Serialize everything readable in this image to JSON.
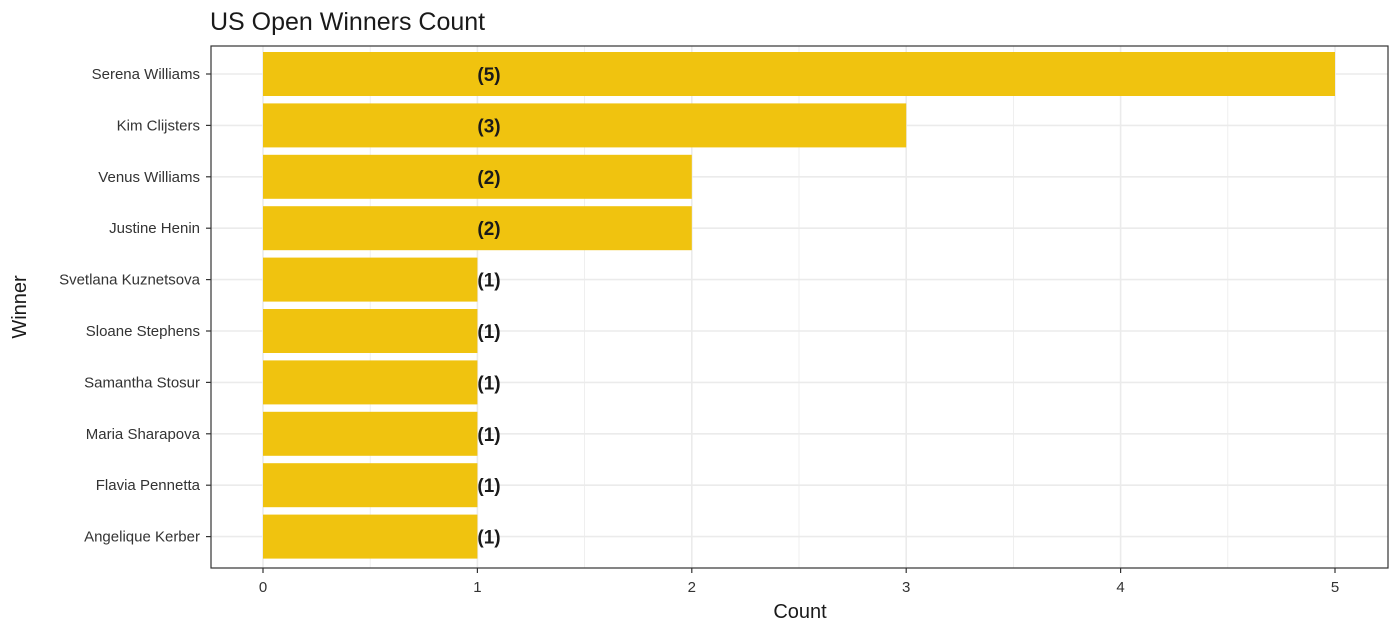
{
  "chart_data": {
    "type": "bar",
    "orientation": "horizontal",
    "title": "US Open Winners Count",
    "xlabel": "Count",
    "ylabel": "Winner",
    "categories": [
      "Serena Williams",
      "Kim Clijsters",
      "Venus Williams",
      "Justine Henin",
      "Svetlana Kuznetsova",
      "Sloane Stephens",
      "Samantha Stosur",
      "Maria Sharapova",
      "Flavia Pennetta",
      "Angelique Kerber"
    ],
    "values": [
      5,
      3,
      2,
      2,
      1,
      1,
      1,
      1,
      1,
      1
    ],
    "data_labels": [
      "(5)",
      "(3)",
      "(2)",
      "(2)",
      "(1)",
      "(1)",
      "(1)",
      "(1)",
      "(1)",
      "(1)"
    ],
    "xlim": [
      0,
      5
    ],
    "x_ticks": [
      "0",
      "1",
      "2",
      "3",
      "4",
      "5"
    ],
    "grid": true,
    "bar_color": "#f0c30f",
    "panel_border_color": "#333333",
    "grid_color": "#ebebeb"
  }
}
